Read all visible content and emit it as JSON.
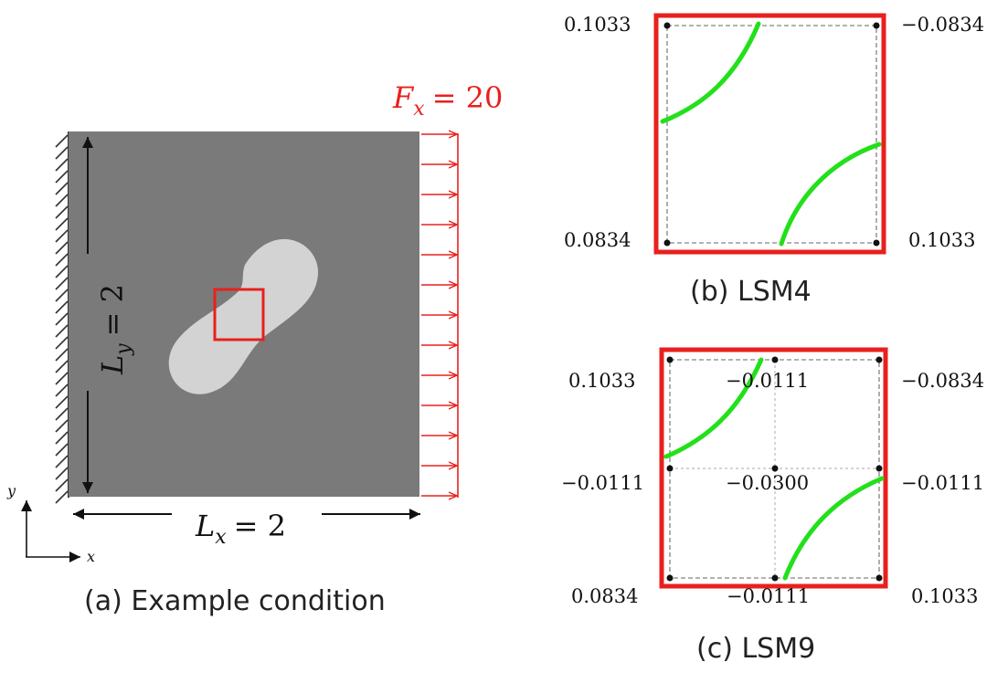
{
  "panel_a": {
    "force_label": "F",
    "force_sub": "x",
    "force_value": "= 20",
    "ly_label": "L",
    "ly_sub": "y",
    "ly_value": "= 2",
    "lx_label": "L",
    "lx_sub": "x",
    "lx_value": "= 2",
    "axis_y": "y",
    "axis_x": "x",
    "caption": "(a) Example condition",
    "colors": {
      "plate": "#7a7a7a",
      "inclusion": "#d3d3d3",
      "force": "#e8201e",
      "highlight": "#e8201e"
    }
  },
  "panel_b": {
    "caption": "(b) LSM4",
    "top_left": "0.1033",
    "top_right": "−0.0834",
    "bottom_left": "0.0834",
    "bottom_right": "0.1033",
    "colors": {
      "frame": "#e8201e",
      "curve": "#22e01a"
    }
  },
  "panel_c": {
    "caption": "(c) LSM9",
    "top_left": "0.1033",
    "top_mid": "−0.0111",
    "top_right": "−0.0834",
    "mid_left": "−0.0111",
    "center": "−0.0300",
    "mid_right": "−0.0111",
    "bottom_left": "0.0834",
    "bottom_mid": "−0.0111",
    "bottom_right": "0.1033",
    "colors": {
      "frame": "#e8201e",
      "curve": "#22e01a"
    }
  }
}
